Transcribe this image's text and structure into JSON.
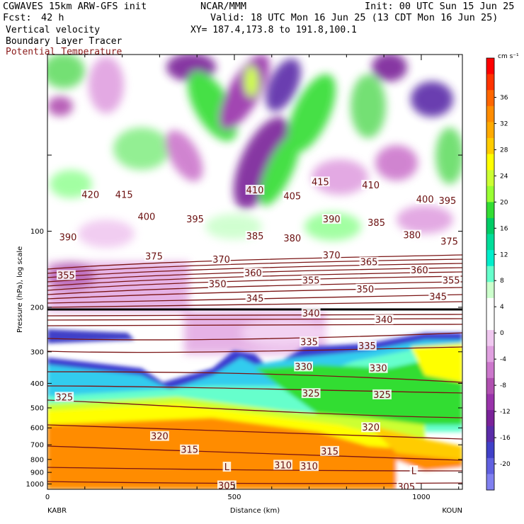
{
  "header": {
    "model": "CGWAVES 15km ARW-GFS init",
    "org": "NCAR/MMM",
    "init": "Init: 00 UTC Sun 15 Jun 25",
    "fcst_label": "Fcst:",
    "fcst_value": "42 h",
    "valid": "Valid: 18 UTC Mon 16 Jun 25 (13 CDT Mon 16 Jun 25)",
    "field1": "Vertical velocity",
    "xy": "XY= 187.4,173.8 to 191.8,100.1",
    "field2": "Boundary Layer Tracer",
    "field3": "Potential Temperature",
    "field3_color": "#8b1a1a"
  },
  "chart_data": {
    "type": "heatmap",
    "title": "",
    "xlabel": "Distance (km)",
    "ylabel": "Pressure (hPa), log scale",
    "y_scale": "log",
    "xlim": [
      0,
      1110
    ],
    "ylim": [
      1050,
      20
    ],
    "x_ticks": [
      "0",
      "500",
      "1000"
    ],
    "x_tick_values": [
      0,
      500,
      1000
    ],
    "y_ticks": [
      "100",
      "200",
      "300",
      "400",
      "500",
      "600",
      "700",
      "800",
      "900",
      "1000"
    ],
    "y_tick_values": [
      100,
      200,
      300,
      400,
      500,
      600,
      700,
      800,
      900,
      1000
    ],
    "start_station": "KABR",
    "end_station": "KOUN",
    "colorbar": {
      "unit": "cm s⁻¹",
      "labels": [
        "36",
        "32",
        "28",
        "24",
        "20",
        "16",
        "12",
        "8",
        "4",
        "0",
        "-4",
        "-8",
        "-12",
        "-16",
        "-20"
      ],
      "label_values": [
        36,
        32,
        28,
        24,
        20,
        16,
        12,
        8,
        4,
        0,
        -4,
        -8,
        -12,
        -16,
        -20
      ],
      "colors": [
        "#ff0000",
        "#ff3300",
        "#ff6600",
        "#ff8c00",
        "#ffaa00",
        "#ffcc00",
        "#ffff00",
        "#ccff33",
        "#99ff33",
        "#33dd33",
        "#00cc66",
        "#00dd99",
        "#00eecc",
        "#66ffcc",
        "#ccffcc",
        "#ffffff",
        "#ffffff",
        "#f0c8f0",
        "#e0a0e0",
        "#cc77cc",
        "#b050b0",
        "#9933aa",
        "#7a2299",
        "#5a2ca8",
        "#4040c8",
        "#6060e0",
        "#8080f0"
      ]
    },
    "theta_labels": [
      {
        "text": "420",
        "x": 115,
        "p": 72
      },
      {
        "text": "415",
        "x": 205,
        "p": 72
      },
      {
        "text": "410",
        "x": 555,
        "p": 69
      },
      {
        "text": "415",
        "x": 730,
        "p": 64
      },
      {
        "text": "410",
        "x": 865,
        "p": 66
      },
      {
        "text": "400",
        "x": 265,
        "p": 88
      },
      {
        "text": "395",
        "x": 395,
        "p": 90
      },
      {
        "text": "405",
        "x": 655,
        "p": 73
      },
      {
        "text": "400",
        "x": 1010,
        "p": 75
      },
      {
        "text": "395",
        "x": 1070,
        "p": 76
      },
      {
        "text": "390",
        "x": 55,
        "p": 106
      },
      {
        "text": "385",
        "x": 555,
        "p": 105
      },
      {
        "text": "380",
        "x": 655,
        "p": 107
      },
      {
        "text": "390",
        "x": 760,
        "p": 90
      },
      {
        "text": "385",
        "x": 880,
        "p": 93
      },
      {
        "text": "380",
        "x": 975,
        "p": 104
      },
      {
        "text": "375",
        "x": 1075,
        "p": 110
      },
      {
        "text": "375",
        "x": 285,
        "p": 126
      },
      {
        "text": "370",
        "x": 465,
        "p": 130
      },
      {
        "text": "370",
        "x": 760,
        "p": 125
      },
      {
        "text": "365",
        "x": 860,
        "p": 133
      },
      {
        "text": "355",
        "x": 50,
        "p": 150
      },
      {
        "text": "360",
        "x": 550,
        "p": 147
      },
      {
        "text": "355",
        "x": 705,
        "p": 157
      },
      {
        "text": "360",
        "x": 995,
        "p": 143
      },
      {
        "text": "355",
        "x": 1080,
        "p": 157
      },
      {
        "text": "350",
        "x": 455,
        "p": 162
      },
      {
        "text": "350",
        "x": 850,
        "p": 170
      },
      {
        "text": "345",
        "x": 555,
        "p": 185
      },
      {
        "text": "345",
        "x": 1045,
        "p": 182
      },
      {
        "text": "340",
        "x": 705,
        "p": 212
      },
      {
        "text": "340",
        "x": 900,
        "p": 225
      },
      {
        "text": "335",
        "x": 700,
        "p": 275
      },
      {
        "text": "335",
        "x": 855,
        "p": 285
      },
      {
        "text": "330",
        "x": 685,
        "p": 345
      },
      {
        "text": "330",
        "x": 885,
        "p": 350
      },
      {
        "text": "325",
        "x": 45,
        "p": 455
      },
      {
        "text": "325",
        "x": 705,
        "p": 440
      },
      {
        "text": "325",
        "x": 895,
        "p": 445
      },
      {
        "text": "320",
        "x": 300,
        "p": 650
      },
      {
        "text": "320",
        "x": 865,
        "p": 600
      },
      {
        "text": "315",
        "x": 380,
        "p": 735
      },
      {
        "text": "315",
        "x": 755,
        "p": 745
      },
      {
        "text": "310",
        "x": 630,
        "p": 845
      },
      {
        "text": "310",
        "x": 700,
        "p": 855
      },
      {
        "text": "305",
        "x": 480,
        "p": 1020
      },
      {
        "text": "305",
        "x": 960,
        "p": 1030
      },
      {
        "text": "L",
        "x": 480,
        "p": 860
      },
      {
        "text": "L",
        "x": 980,
        "p": 890
      }
    ]
  }
}
